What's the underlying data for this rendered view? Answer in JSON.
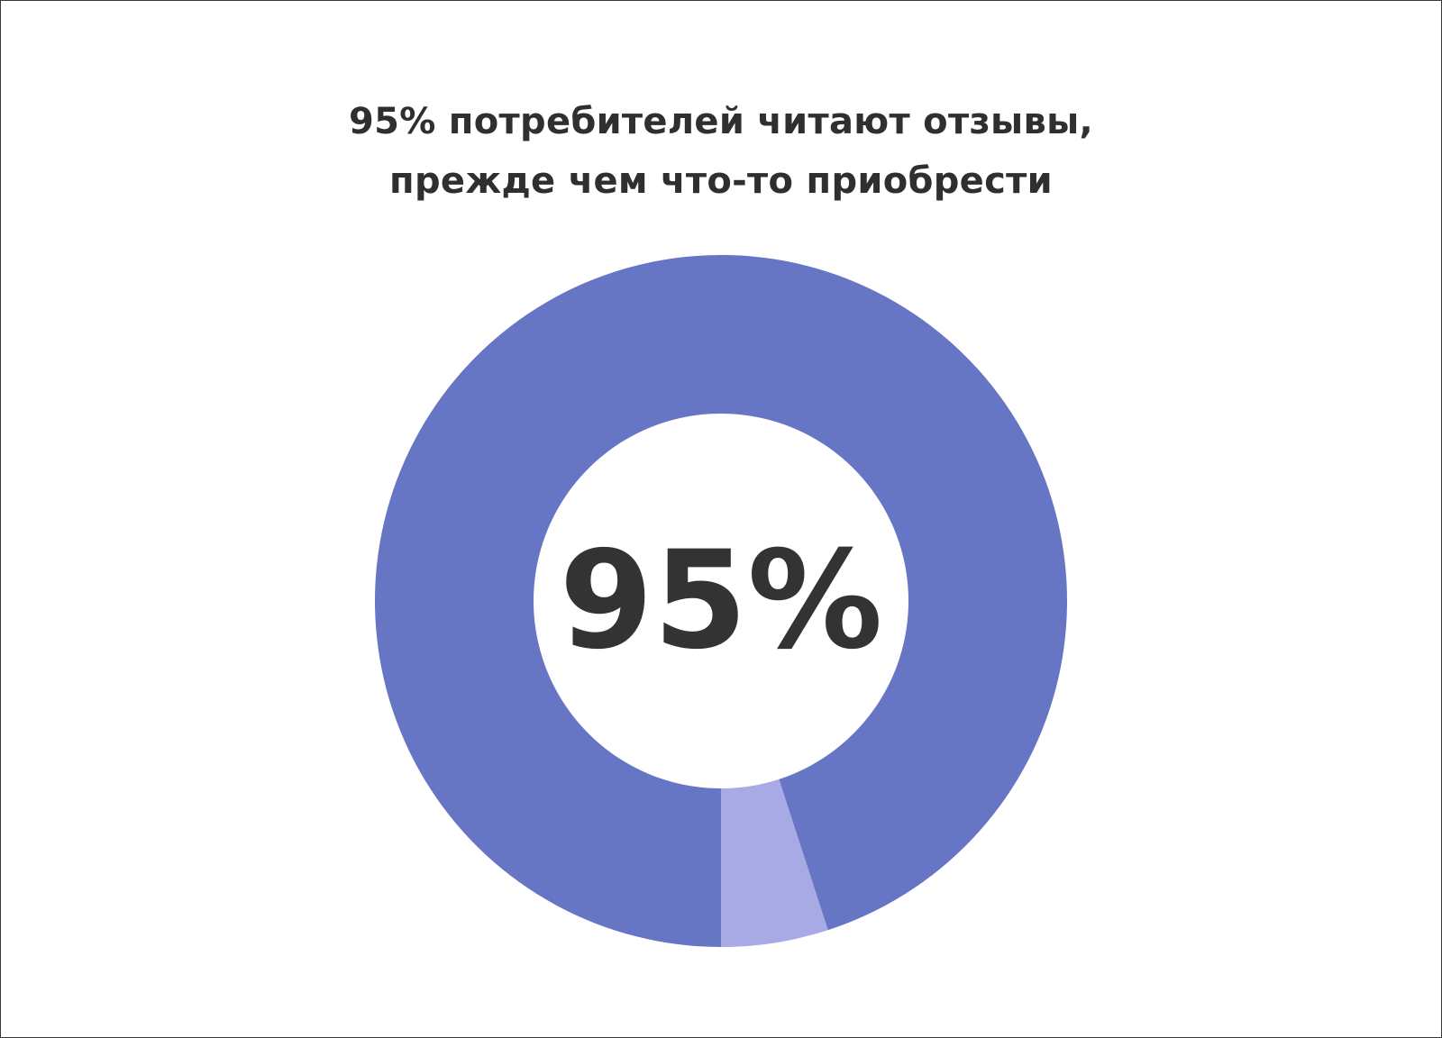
{
  "chart_data": {
    "type": "pie",
    "title_lines": [
      "95% потребителей читают отзывы,",
      "прежде чем что-то приобрести"
    ],
    "center_label": "95%",
    "slices": [
      {
        "value": 95,
        "color": "#6775c5"
      },
      {
        "value": 5,
        "color": "#a7aae4"
      }
    ],
    "donut": true
  }
}
